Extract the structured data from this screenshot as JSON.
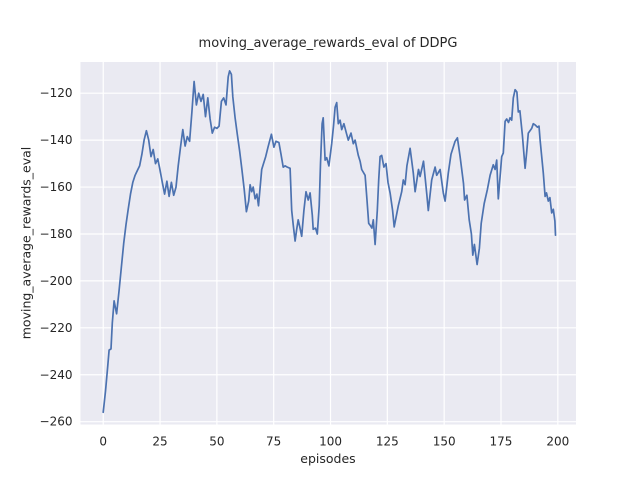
{
  "figure": {
    "title": "moving_average_rewards_eval of DDPG",
    "xlabel": "episodes",
    "ylabel": "moving_average_rewards_eval"
  },
  "chart_data": {
    "type": "line",
    "title": "moving_average_rewards_eval of DDPG",
    "xlabel": "episodes",
    "ylabel": "moving_average_rewards_eval",
    "x_ticks": [
      0,
      25,
      50,
      75,
      100,
      125,
      150,
      175,
      200
    ],
    "y_ticks": [
      -120,
      -140,
      -160,
      -180,
      -200,
      -220,
      -240,
      -260
    ],
    "xlim": [
      -10,
      208
    ],
    "ylim": [
      -261.2,
      -106.7
    ],
    "grid": true,
    "legend_position": "none",
    "style": {
      "plot_background": "#EAEAF2",
      "grid_color": "#FFFFFF",
      "line_color": "#4C72B0",
      "text_color": "#262626",
      "figure_background": "#FFFFFF"
    },
    "series": [
      {
        "name": "moving_average_rewards_eval",
        "x": [
          0,
          1,
          2,
          2.6,
          3.4,
          4,
          4.8,
          5.9,
          7,
          8,
          9,
          10,
          11,
          12,
          13,
          14,
          15,
          16,
          17,
          18,
          19,
          20,
          21,
          22,
          23,
          24,
          25,
          26,
          27,
          28,
          29,
          30,
          31,
          32,
          33,
          34,
          35,
          36,
          37,
          38,
          39,
          40,
          41,
          42,
          43,
          44,
          45,
          46,
          47,
          48,
          49,
          50,
          51,
          52,
          53,
          54,
          55,
          55.6,
          56.4,
          57,
          58,
          59,
          60,
          61,
          62,
          63,
          64,
          64.6,
          65.3,
          66,
          66.8,
          67.6,
          68.3,
          69.7,
          70.5,
          71.5,
          72.5,
          74,
          75.1,
          76,
          77.3,
          78.2,
          79.2,
          80,
          81,
          82.2,
          82.9,
          83.6,
          84.4,
          85.1,
          85.8,
          86.5,
          87.3,
          88.3,
          89.2,
          90.2,
          91,
          92,
          92.4,
          93.4,
          94.2,
          95,
          95.6,
          96.3,
          96.8,
          97.6,
          98.3,
          99.3,
          100.5,
          101.3,
          102,
          102.7,
          103.4,
          104.2,
          104.9,
          105.9,
          107.1,
          107.8,
          109,
          110,
          110.8,
          112.2,
          113,
          113.7,
          115.2,
          116,
          116.8,
          117.6,
          118.2,
          118.8,
          119.6,
          120.6,
          121.2,
          121.8,
          122.5,
          123.5,
          124.4,
          125.3,
          126.2,
          127.3,
          128,
          129.8,
          131.3,
          132,
          132.8,
          133.6,
          135,
          136.4,
          137.2,
          138.7,
          139.4,
          140.9,
          142.4,
          143,
          144.5,
          146,
          146.7,
          148.2,
          149.6,
          150.4,
          151.8,
          153,
          154.8,
          155.8,
          157,
          158.5,
          159,
          160,
          161,
          162,
          162.6,
          163.3,
          164.5,
          165.5,
          166.3,
          167.6,
          169,
          170.2,
          171.6,
          172.4,
          173.1,
          173.8,
          175.3,
          176,
          176.8,
          177.5,
          178.3,
          179,
          179.7,
          180.4,
          181.2,
          182,
          182.6,
          183.3,
          184.4,
          185.6,
          186.3,
          187,
          188.5,
          189.2,
          190,
          191,
          191.7,
          192.2,
          192.9,
          193.6,
          194.4,
          195,
          195.8,
          196.5,
          197.3,
          198,
          198.7,
          199
        ],
        "y": [
          -256,
          -247,
          -236,
          -229.5,
          -229,
          -218,
          -208.5,
          -214,
          -204,
          -194,
          -184,
          -176,
          -169.5,
          -163,
          -158,
          -155,
          -153,
          -151,
          -146,
          -140,
          -136,
          -140,
          -147,
          -144,
          -150,
          -148,
          -153,
          -158,
          -163,
          -157.5,
          -164,
          -158,
          -163.5,
          -160,
          -151,
          -143,
          -135.5,
          -142.5,
          -138.5,
          -140.5,
          -128,
          -115,
          -125,
          -120,
          -123.5,
          -120.5,
          -130,
          -122,
          -131,
          -137,
          -134.5,
          -135,
          -134,
          -123.5,
          -122,
          -125,
          -113,
          -110.5,
          -112,
          -121.5,
          -130.5,
          -137.5,
          -144.5,
          -152.5,
          -161,
          -170.5,
          -166,
          -159,
          -162,
          -160,
          -165,
          -163,
          -168,
          -152.5,
          -150,
          -147,
          -143,
          -137.5,
          -143,
          -140.5,
          -141,
          -146,
          -151.5,
          -151,
          -151.5,
          -152,
          -170,
          -176,
          -183,
          -178,
          -174,
          -177,
          -181,
          -170,
          -162,
          -165.5,
          -162.5,
          -172,
          -178,
          -177.5,
          -180,
          -168,
          -150,
          -133,
          -130.5,
          -148.5,
          -147.5,
          -151,
          -141.5,
          -134,
          -126,
          -124,
          -133,
          -131.5,
          -135.5,
          -133,
          -137.5,
          -140,
          -137,
          -141.5,
          -140,
          -146.5,
          -149,
          -152.5,
          -155,
          -165,
          -175.5,
          -176.5,
          -177.5,
          -174,
          -184.5,
          -170,
          -157,
          -147,
          -146.5,
          -151.5,
          -150,
          -158,
          -162.5,
          -170,
          -177,
          -168,
          -162,
          -157,
          -159,
          -151,
          -143.5,
          -154,
          -162,
          -152.5,
          -155.5,
          -149,
          -163.5,
          -170,
          -157,
          -151.5,
          -155,
          -152.5,
          -162.5,
          -166,
          -154,
          -146,
          -140.5,
          -139,
          -147,
          -158.5,
          -165.5,
          -163.5,
          -174,
          -180,
          -189,
          -184.5,
          -193,
          -186,
          -175.5,
          -167,
          -161,
          -155,
          -150.5,
          -152.5,
          -148.5,
          -165,
          -147,
          -145.5,
          -132,
          -131,
          -132.5,
          -130.5,
          -131.5,
          -122,
          -118.5,
          -119.5,
          -128,
          -127.5,
          -138,
          -152,
          -145,
          -137,
          -135,
          -133,
          -133.5,
          -134.5,
          -134,
          -140,
          -147,
          -154,
          -164,
          -162.5,
          -166,
          -164.5,
          -171,
          -169.5,
          -174.5,
          -180.5
        ]
      }
    ]
  }
}
